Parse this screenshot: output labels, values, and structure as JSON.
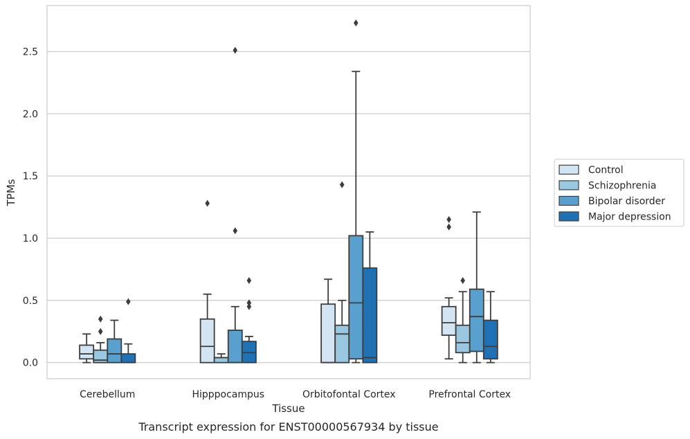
{
  "chart_data": {
    "type": "box",
    "title": "",
    "caption": "Transcript expression for ENST00000567934 by tissue",
    "xlabel": "Tissue",
    "ylabel": "TPMs",
    "ylim": [
      -0.13,
      2.87
    ],
    "yticks": [
      0.0,
      0.5,
      1.0,
      1.5,
      2.0,
      2.5
    ],
    "ytick_labels": [
      "0.0",
      "0.5",
      "1.0",
      "1.5",
      "2.0",
      "2.5"
    ],
    "grid": "horizontal",
    "legend_position": "right",
    "categories": [
      "Cerebellum",
      "Hipppocampus",
      "Orbitofontal Cortex",
      "Prefrontal Cortex"
    ],
    "series": [
      {
        "name": "Control",
        "color": "#d3e4f3",
        "boxes": [
          {
            "whislo": 0.0,
            "q1": 0.03,
            "med": 0.07,
            "q3": 0.14,
            "whishi": 0.23,
            "fliers": []
          },
          {
            "whislo": 0.0,
            "q1": 0.0,
            "med": 0.13,
            "q3": 0.35,
            "whishi": 0.55,
            "fliers": [
              1.28
            ]
          },
          {
            "whislo": 0.0,
            "q1": 0.0,
            "med": 0.0,
            "q3": 0.47,
            "whishi": 0.67,
            "fliers": []
          },
          {
            "whislo": 0.03,
            "q1": 0.22,
            "med": 0.32,
            "q3": 0.45,
            "whishi": 0.52,
            "fliers": [
              1.09,
              1.15
            ]
          }
        ]
      },
      {
        "name": "Schizophrenia",
        "color": "#9ac8e0",
        "boxes": [
          {
            "whislo": 0.0,
            "q1": 0.0,
            "med": 0.02,
            "q3": 0.1,
            "whishi": 0.16,
            "fliers": [
              0.25,
              0.35
            ]
          },
          {
            "whislo": 0.0,
            "q1": 0.0,
            "med": 0.04,
            "q3": 0.04,
            "whishi": 0.07,
            "fliers": []
          },
          {
            "whislo": 0.0,
            "q1": 0.0,
            "med": 0.23,
            "q3": 0.3,
            "whishi": 0.5,
            "fliers": [
              1.43
            ]
          },
          {
            "whislo": 0.0,
            "q1": 0.08,
            "med": 0.16,
            "q3": 0.3,
            "whishi": 0.57,
            "fliers": [
              0.66
            ]
          }
        ]
      },
      {
        "name": "Bipolar disorder",
        "color": "#5aa0ce",
        "boxes": [
          {
            "whislo": 0.0,
            "q1": 0.0,
            "med": 0.07,
            "q3": 0.19,
            "whishi": 0.34,
            "fliers": []
          },
          {
            "whislo": 0.0,
            "q1": 0.0,
            "med": 0.0,
            "q3": 0.26,
            "whishi": 0.45,
            "fliers": [
              1.06,
              2.51
            ]
          },
          {
            "whislo": 0.0,
            "q1": 0.03,
            "med": 0.48,
            "q3": 1.02,
            "whishi": 2.34,
            "fliers": [
              2.73
            ]
          },
          {
            "whislo": 0.0,
            "q1": 0.09,
            "med": 0.37,
            "q3": 0.59,
            "whishi": 1.21,
            "fliers": []
          }
        ]
      },
      {
        "name": "Major depression",
        "color": "#2070b4",
        "boxes": [
          {
            "whislo": 0.0,
            "q1": 0.0,
            "med": 0.0,
            "q3": 0.07,
            "whishi": 0.15,
            "fliers": [
              0.49
            ]
          },
          {
            "whislo": 0.0,
            "q1": 0.0,
            "med": 0.08,
            "q3": 0.17,
            "whishi": 0.21,
            "fliers": [
              0.45,
              0.48,
              0.66
            ]
          },
          {
            "whislo": 0.0,
            "q1": 0.0,
            "med": 0.04,
            "q3": 0.76,
            "whishi": 1.05,
            "fliers": []
          },
          {
            "whislo": 0.0,
            "q1": 0.03,
            "med": 0.13,
            "q3": 0.34,
            "whishi": 0.57,
            "fliers": []
          }
        ]
      }
    ]
  }
}
